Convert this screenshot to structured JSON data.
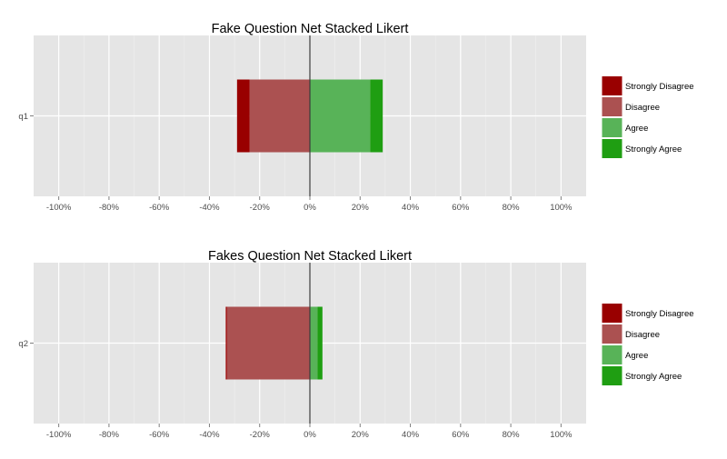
{
  "chart_data": [
    {
      "type": "bar",
      "orientation": "horizontal",
      "stacked": "diverging",
      "title": "Fake Question Net Stacked Likert",
      "categories": [
        "q1"
      ],
      "series": [
        {
          "name": "Strongly Disagree",
          "values": [
            -5
          ],
          "color": "#990000"
        },
        {
          "name": "Disagree",
          "values": [
            -24
          ],
          "color": "#ab5151"
        },
        {
          "name": "Agree",
          "values": [
            24
          ],
          "color": "#58b358"
        },
        {
          "name": "Strongly Agree",
          "values": [
            5
          ],
          "color": "#1f9e12"
        }
      ],
      "xlim": [
        -110,
        110
      ],
      "xticks": [
        -100,
        -80,
        -60,
        -40,
        -20,
        0,
        20,
        40,
        60,
        80,
        100
      ],
      "xtick_labels": [
        "-100%",
        "-80%",
        "-60%",
        "-40%",
        "-20%",
        "0%",
        "20%",
        "40%",
        "60%",
        "80%",
        "100%"
      ],
      "grid": true,
      "legend_position": "right"
    },
    {
      "type": "bar",
      "orientation": "horizontal",
      "stacked": "diverging",
      "title": "Fakes Question Net Stacked Likert",
      "categories": [
        "q2"
      ],
      "series": [
        {
          "name": "Strongly Disagree",
          "values": [
            -0.5
          ],
          "color": "#990000"
        },
        {
          "name": "Disagree",
          "values": [
            -33
          ],
          "color": "#ab5151"
        },
        {
          "name": "Agree",
          "values": [
            3
          ],
          "color": "#58b358"
        },
        {
          "name": "Strongly Agree",
          "values": [
            2
          ],
          "color": "#1f9e12"
        }
      ],
      "xlim": [
        -110,
        110
      ],
      "xticks": [
        -100,
        -80,
        -60,
        -40,
        -20,
        0,
        20,
        40,
        60,
        80,
        100
      ],
      "xtick_labels": [
        "-100%",
        "-80%",
        "-60%",
        "-40%",
        "-20%",
        "0%",
        "20%",
        "40%",
        "60%",
        "80%",
        "100%"
      ],
      "grid": true,
      "legend_position": "right"
    }
  ]
}
